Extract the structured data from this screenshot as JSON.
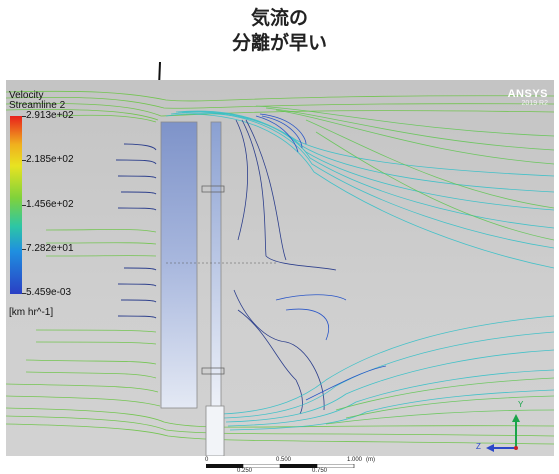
{
  "annotation": {
    "line1": "気流の",
    "line2": "分離が早い"
  },
  "legend": {
    "title_line1": "Velocity",
    "title_line2": "Streamline 2",
    "ticks": [
      "2.913e+02",
      "2.185e+02",
      "1.456e+02",
      "7.282e+01",
      "5.459e-03"
    ],
    "unit": "[km hr^-1]",
    "colormap": [
      "#e8201c",
      "#f0b01e",
      "#e8e321",
      "#7fd23b",
      "#2dc6a5",
      "#1f8fe0",
      "#2a3fc4"
    ]
  },
  "brand": {
    "name": "ANSYS",
    "version": "2019 R2"
  },
  "axes_triad": {
    "x_label": "Y",
    "z_label": "Z"
  },
  "scale_bar": {
    "labels_top": [
      "0",
      "0.500",
      "1.000",
      "(m)"
    ],
    "labels_bottom": [
      "0.250",
      "0.750"
    ]
  }
}
